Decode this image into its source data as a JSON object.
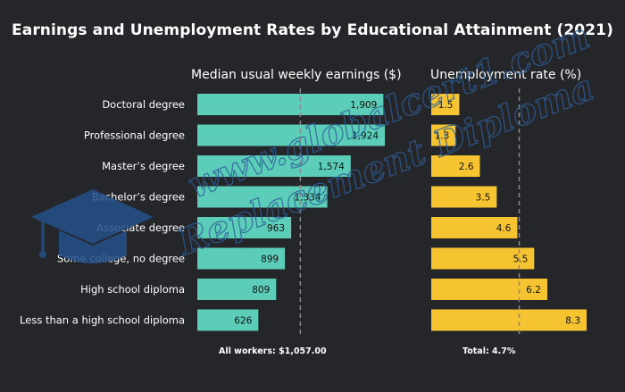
{
  "title": "Earnings and Unemployment Rates by Educational Attainment (2021)",
  "left_panel_title": "Median usual weekly earnings ($)",
  "right_panel_title": "Unemployment rate (%)",
  "footer_left": "All workers: $1,057.00",
  "footer_right": "Total: 4.7%",
  "watermark": {
    "line1": "www.globalcert1.com",
    "line2": "Replacement Diploma",
    "icon": "graduation-cap-icon"
  },
  "colors": {
    "background": "#25262a",
    "earnings_bar": "#5ccdb8",
    "unemployment_bar": "#f6c431",
    "reference_line": "#8a8a8a"
  },
  "chart_data": {
    "type": "bar",
    "orientation": "horizontal",
    "categories": [
      "Doctoral degree",
      "Professional degree",
      "Master’s degree",
      "Bachelor’s degree",
      "Associate degree",
      "Some college, no degree",
      "High school diploma",
      "Less than a high school diploma"
    ],
    "series": [
      {
        "name": "Median usual weekly earnings ($)",
        "values": [
          1909,
          1924,
          1574,
          1334,
          963,
          899,
          809,
          626
        ],
        "labels": [
          "1,909",
          "1,924",
          "1,574",
          "1,334",
          "963",
          "899",
          "809",
          "626"
        ],
        "reference": 1057.0
      },
      {
        "name": "Unemployment rate (%)",
        "values": [
          1.5,
          1.3,
          2.6,
          3.5,
          4.6,
          5.5,
          6.2,
          8.3
        ],
        "labels": [
          "1.5",
          "1.3",
          "2.6",
          "3.5",
          "4.6",
          "5.5",
          "6.2",
          "8.3"
        ],
        "reference": 4.7
      }
    ],
    "grid": false,
    "legend": "none"
  }
}
